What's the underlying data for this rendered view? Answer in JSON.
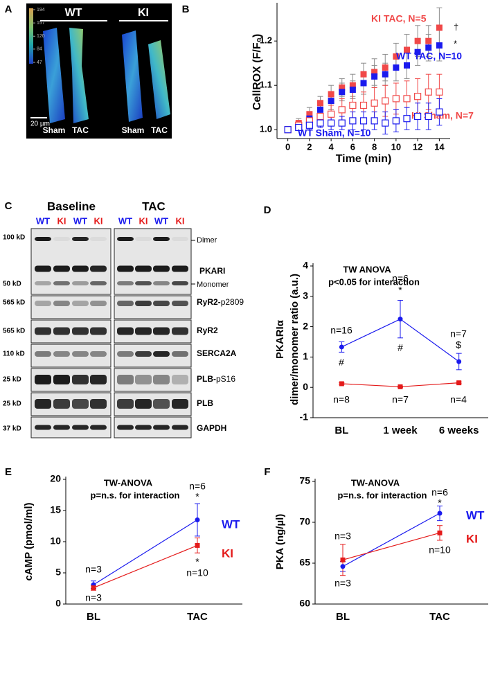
{
  "panel_a": {
    "label": "A",
    "colorbar_ticks": [
      194,
      157,
      120,
      84,
      47
    ],
    "groups": [
      "WT",
      "KI"
    ],
    "conditions": [
      "Sham",
      "TAC",
      "Sham",
      "TAC"
    ],
    "scale_bar": "20 µm"
  },
  "panel_c": {
    "label": "C",
    "groups": [
      "Baseline",
      "TAC"
    ],
    "lanes": [
      "WT",
      "KI",
      "WT",
      "KI",
      "WT",
      "KI",
      "WT",
      "KI"
    ],
    "lane_colors": {
      "WT": "#1a1aee",
      "KI": "#e41a1a"
    },
    "mw_labels": [
      "100 kD",
      "50 kD",
      "565 kD",
      "565 kD",
      "110 kD",
      "25 kD",
      "25 kD",
      "37 kD"
    ],
    "band_labels": [
      "Dimer",
      "PKARI",
      "Monomer",
      [
        "RyR2-",
        "p2809"
      ],
      "RyR2",
      "SERCA2A",
      [
        "PLB-",
        "pS16"
      ],
      "PLB",
      "GAPDH"
    ]
  },
  "chart_data": [
    {
      "panel_label": "B",
      "type": "scatter",
      "xlabel": "Time (min)",
      "ylabel": "CellROX (F/F₀)",
      "x": [
        0,
        1,
        2,
        3,
        4,
        5,
        6,
        7,
        8,
        9,
        10,
        11,
        12,
        13,
        14
      ],
      "xlim": [
        -1,
        15
      ],
      "xticks": [
        0,
        2,
        4,
        6,
        8,
        10,
        12,
        14
      ],
      "ylim": [
        0.98,
        1.28
      ],
      "yticks": [
        {
          "value": 1,
          "label": "1.0"
        },
        1.1,
        1.2
      ],
      "series": [
        {
          "name": "KI TAC, N=5",
          "color": "#f04848",
          "marker": "square",
          "error_color": "#8c8c8c",
          "values": [
            1,
            1.015,
            1.035,
            1.06,
            1.08,
            1.095,
            1.1,
            1.125,
            1.13,
            1.14,
            1.165,
            1.18,
            1.2,
            1.2,
            1.23
          ],
          "errors": [
            0,
            0.01,
            0.015,
            0.015,
            0.02,
            0.02,
            0.025,
            0.025,
            0.03,
            0.03,
            0.03,
            0.035,
            0.035,
            0.035,
            0.045
          ]
        },
        {
          "name": "WT TAC, N=10",
          "color": "#1a1aee",
          "marker": "square",
          "error_color": "#8c8c8c",
          "values": [
            1,
            1.01,
            1.025,
            1.045,
            1.065,
            1.085,
            1.09,
            1.105,
            1.12,
            1.125,
            1.14,
            1.145,
            1.175,
            1.185,
            1.19
          ],
          "errors": [
            0,
            0.01,
            0.015,
            0.015,
            0.02,
            0.02,
            0.02,
            0.025,
            0.025,
            0.025,
            0.03,
            0.03,
            0.03,
            0.03,
            0.035
          ]
        },
        {
          "name": "KI Sham, N=7",
          "color": "#f04848",
          "marker": "open-square",
          "values": [
            1,
            1.01,
            1.02,
            1.03,
            1.035,
            1.045,
            1.055,
            1.055,
            1.06,
            1.065,
            1.07,
            1.07,
            1.075,
            1.085,
            1.085
          ],
          "errors": [
            0,
            0.01,
            0.015,
            0.02,
            0.02,
            0.025,
            0.03,
            0.03,
            0.035,
            0.035,
            0.035,
            0.04,
            0.04,
            0.04,
            0.04
          ]
        },
        {
          "name": "WT Sham, N=10",
          "color": "#1a1aee",
          "marker": "open-square",
          "values": [
            1,
            1.005,
            1.01,
            1.015,
            1.015,
            1.015,
            1.02,
            1.02,
            1.02,
            1.015,
            1.02,
            1.025,
            1.03,
            1.03,
            1.04
          ],
          "errors": [
            0,
            0.005,
            0.01,
            0.01,
            0.015,
            0.015,
            0.02,
            0.02,
            0.02,
            0.025,
            0.025,
            0.025,
            0.03,
            0.03,
            0.03
          ]
        }
      ],
      "annotations": [
        "†",
        "*"
      ]
    },
    {
      "panel_label": "D",
      "type": "line",
      "title": "TW ANOVA",
      "subtitle": "p<0.05 for interaction",
      "ylabel": [
        "PKARIα",
        "dimer/monomer ratio (a.u.)"
      ],
      "categories": [
        "BL",
        "1 week",
        "6 weeks"
      ],
      "ylim": [
        -1,
        4
      ],
      "yticks": [
        -1,
        0,
        1,
        2,
        3,
        4
      ],
      "series": [
        {
          "color": "#1a1aee",
          "marker": "circle",
          "values": [
            1.33,
            2.25,
            0.85
          ],
          "errors": [
            0.17,
            0.62,
            0.27
          ]
        },
        {
          "color": "#e41a1a",
          "marker": "square",
          "values": [
            0.12,
            0.02,
            0.15
          ],
          "errors": [
            0.03,
            0.02,
            0.03
          ]
        }
      ],
      "annotations": [
        "n=16",
        "n=6",
        "*",
        "n=7",
        "$",
        "#",
        "#",
        "n=8",
        "n=7",
        "n=4"
      ]
    },
    {
      "panel_label": "E",
      "type": "line",
      "title": "TW-ANOVA",
      "subtitle": "p=n.s. for interaction",
      "ylabel": "cAMP (pmol/ml)",
      "categories": [
        "BL",
        "TAC"
      ],
      "ylim": [
        0,
        20
      ],
      "yticks": [
        0,
        5,
        10,
        15,
        20
      ],
      "series": [
        {
          "name": "WT",
          "color": "#1a1aee",
          "marker": "circle",
          "values": [
            3.1,
            13.5
          ],
          "errors": [
            0.6,
            2.6
          ]
        },
        {
          "name": "KI",
          "color": "#e41a1a",
          "marker": "square",
          "values": [
            2.6,
            9.4
          ],
          "errors": [
            0.4,
            1.2
          ]
        }
      ],
      "annotations": [
        "n=3",
        "n=3",
        "n=6",
        "*",
        "*",
        "n=10"
      ]
    },
    {
      "panel_label": "F",
      "type": "line",
      "title": "TW-ANOVA",
      "subtitle": "p=n.s. for interaction",
      "ylabel": "PKA (ng/µl)",
      "categories": [
        "BL",
        "TAC"
      ],
      "ylim": [
        60,
        75
      ],
      "yticks": [
        60,
        65,
        70,
        75
      ],
      "series": [
        {
          "name": "WT",
          "color": "#1a1aee",
          "marker": "circle",
          "values": [
            64.6,
            71.1
          ],
          "errors": [
            0.6,
            0.9
          ]
        },
        {
          "name": "KI",
          "color": "#e41a1a",
          "marker": "square",
          "values": [
            65.4,
            68.7
          ],
          "errors": [
            1.9,
            0.9
          ]
        }
      ],
      "annotations": [
        "n=3",
        "n=3",
        "n=6",
        "*",
        "n=10"
      ]
    }
  ]
}
